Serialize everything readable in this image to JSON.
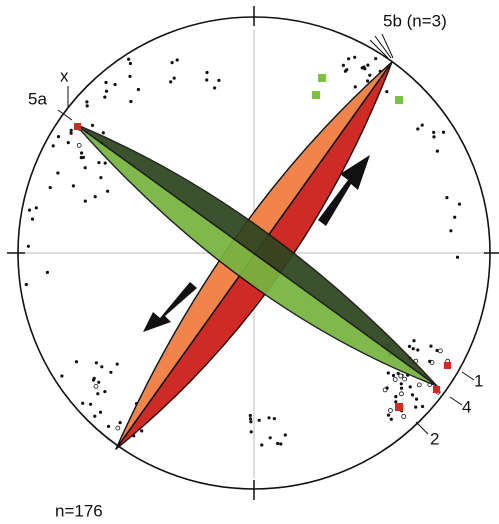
{
  "labels": {
    "set_5b": "5b (n=3)",
    "x": "x",
    "set_5a": "5a",
    "one": "1",
    "four": "4",
    "two": "2",
    "count": "n=176"
  }
}
